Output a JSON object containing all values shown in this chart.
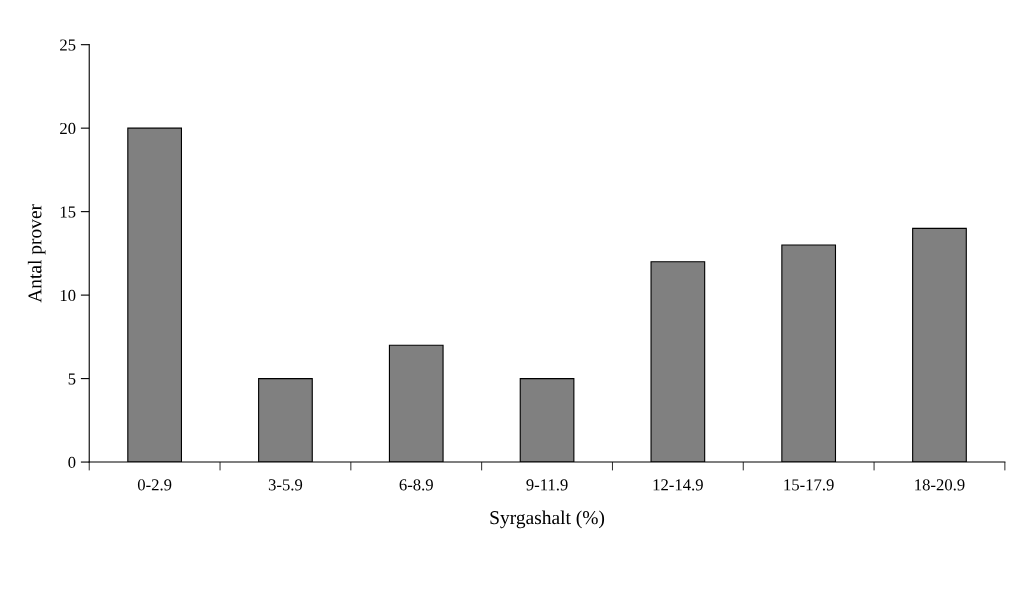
{
  "chart_data": {
    "type": "bar",
    "xlabel": "Syrgashalt (%)",
    "ylabel": "Antal prover",
    "categories": [
      "0-2.9",
      "3-5.9",
      "6-8.9",
      "9-11.9",
      "12-14.9",
      "15-17.9",
      "18-20.9"
    ],
    "values": [
      20,
      5,
      7,
      5,
      12,
      13,
      14
    ],
    "color": "#808080",
    "ylim": [
      0,
      25
    ],
    "yticks": [
      0,
      5,
      10,
      15,
      20,
      25
    ],
    "grid": false
  }
}
